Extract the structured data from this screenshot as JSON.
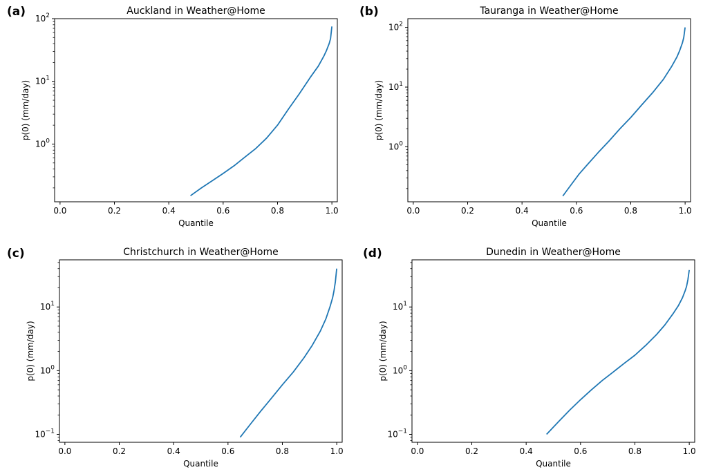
{
  "chart_data": [
    {
      "type": "line",
      "panel_label": "(a)",
      "title": "Auckland in Weather@Home",
      "xlabel": "Quantile",
      "ylabel": "p(0) (mm/day)",
      "xlim": [
        -0.02,
        1.02
      ],
      "ylim": [
        0.12,
        100
      ],
      "yscale": "log",
      "xticks": [
        {
          "value": 0.0,
          "label": "0.0"
        },
        {
          "value": 0.2,
          "label": "0.2"
        },
        {
          "value": 0.4,
          "label": "0.4"
        },
        {
          "value": 0.6,
          "label": "0.6"
        },
        {
          "value": 0.8,
          "label": "0.8"
        },
        {
          "value": 1.0,
          "label": "1.0"
        }
      ],
      "yticks": [
        {
          "value": 1,
          "base": "10",
          "exp": "0"
        },
        {
          "value": 10,
          "base": "10",
          "exp": "1"
        },
        {
          "value": 100,
          "base": "10",
          "exp": "2"
        }
      ],
      "line_color": "#1f77b4",
      "series": [
        {
          "x": [
            0.48,
            0.52,
            0.56,
            0.6,
            0.64,
            0.68,
            0.72,
            0.76,
            0.8,
            0.84,
            0.88,
            0.92,
            0.95,
            0.97,
            0.98,
            0.99,
            0.995,
            1.0
          ],
          "y": [
            0.15,
            0.2,
            0.26,
            0.34,
            0.45,
            0.62,
            0.85,
            1.25,
            2.0,
            3.6,
            6.3,
            11.5,
            17.5,
            25,
            31,
            40,
            48,
            75
          ]
        }
      ]
    },
    {
      "type": "line",
      "panel_label": "(b)",
      "title": "Tauranga in Weather@Home",
      "xlabel": "Quantile",
      "ylabel": "p(0) (mm/day)",
      "xlim": [
        -0.02,
        1.02
      ],
      "ylim": [
        0.12,
        140
      ],
      "yscale": "log",
      "xticks": [
        {
          "value": 0.0,
          "label": "0.0"
        },
        {
          "value": 0.2,
          "label": "0.2"
        },
        {
          "value": 0.4,
          "label": "0.4"
        },
        {
          "value": 0.6,
          "label": "0.6"
        },
        {
          "value": 0.8,
          "label": "0.8"
        },
        {
          "value": 1.0,
          "label": "1.0"
        }
      ],
      "yticks": [
        {
          "value": 1,
          "base": "10",
          "exp": "0"
        },
        {
          "value": 10,
          "base": "10",
          "exp": "1"
        },
        {
          "value": 100,
          "base": "10",
          "exp": "2"
        }
      ],
      "line_color": "#1f77b4",
      "series": [
        {
          "x": [
            0.55,
            0.58,
            0.61,
            0.64,
            0.68,
            0.72,
            0.76,
            0.8,
            0.84,
            0.88,
            0.92,
            0.95,
            0.97,
            0.98,
            0.99,
            0.995,
            1.0
          ],
          "y": [
            0.15,
            0.23,
            0.35,
            0.5,
            0.8,
            1.25,
            2.0,
            3.1,
            5.0,
            8.0,
            13.5,
            22,
            32,
            41,
            55,
            68,
            100
          ]
        }
      ]
    },
    {
      "type": "line",
      "panel_label": "(c)",
      "title": "Christchurch in Weather@Home",
      "xlabel": "Quantile",
      "ylabel": "p(0) (mm/day)",
      "xlim": [
        -0.02,
        1.02
      ],
      "ylim": [
        0.075,
        55
      ],
      "yscale": "log",
      "xticks": [
        {
          "value": 0.0,
          "label": "0.0"
        },
        {
          "value": 0.2,
          "label": "0.2"
        },
        {
          "value": 0.4,
          "label": "0.4"
        },
        {
          "value": 0.6,
          "label": "0.6"
        },
        {
          "value": 0.8,
          "label": "0.8"
        },
        {
          "value": 1.0,
          "label": "1.0"
        }
      ],
      "yticks": [
        {
          "value": 0.1,
          "base": "10",
          "exp": "−1"
        },
        {
          "value": 1,
          "base": "10",
          "exp": "0"
        },
        {
          "value": 10,
          "base": "10",
          "exp": "1"
        }
      ],
      "line_color": "#1f77b4",
      "series": [
        {
          "x": [
            0.645,
            0.68,
            0.72,
            0.76,
            0.8,
            0.84,
            0.88,
            0.91,
            0.94,
            0.96,
            0.975,
            0.985,
            0.99,
            0.995,
            1.0
          ],
          "y": [
            0.09,
            0.14,
            0.23,
            0.37,
            0.6,
            0.95,
            1.6,
            2.5,
            4.2,
            6.5,
            10,
            14,
            18,
            25,
            40
          ]
        }
      ]
    },
    {
      "type": "line",
      "panel_label": "(d)",
      "title": "Dunedin in Weather@Home",
      "xlabel": "Quantile",
      "ylabel": "p(0) (mm/day)",
      "xlim": [
        -0.02,
        1.02
      ],
      "ylim": [
        0.075,
        55
      ],
      "yscale": "log",
      "xticks": [
        {
          "value": 0.0,
          "label": "0.0"
        },
        {
          "value": 0.2,
          "label": "0.2"
        },
        {
          "value": 0.4,
          "label": "0.4"
        },
        {
          "value": 0.6,
          "label": "0.6"
        },
        {
          "value": 0.8,
          "label": "0.8"
        },
        {
          "value": 1.0,
          "label": "1.0"
        }
      ],
      "yticks": [
        {
          "value": 0.1,
          "base": "10",
          "exp": "−1"
        },
        {
          "value": 1,
          "base": "10",
          "exp": "0"
        },
        {
          "value": 10,
          "base": "10",
          "exp": "1"
        }
      ],
      "line_color": "#1f77b4",
      "series": [
        {
          "x": [
            0.475,
            0.52,
            0.56,
            0.6,
            0.64,
            0.68,
            0.72,
            0.76,
            0.8,
            0.84,
            0.88,
            0.91,
            0.94,
            0.96,
            0.975,
            0.985,
            0.99,
            0.995,
            1.0
          ],
          "y": [
            0.1,
            0.16,
            0.24,
            0.35,
            0.5,
            0.7,
            0.95,
            1.3,
            1.75,
            2.5,
            3.7,
            5.2,
            7.8,
            10.5,
            14,
            18,
            21,
            27,
            38
          ]
        }
      ]
    }
  ]
}
